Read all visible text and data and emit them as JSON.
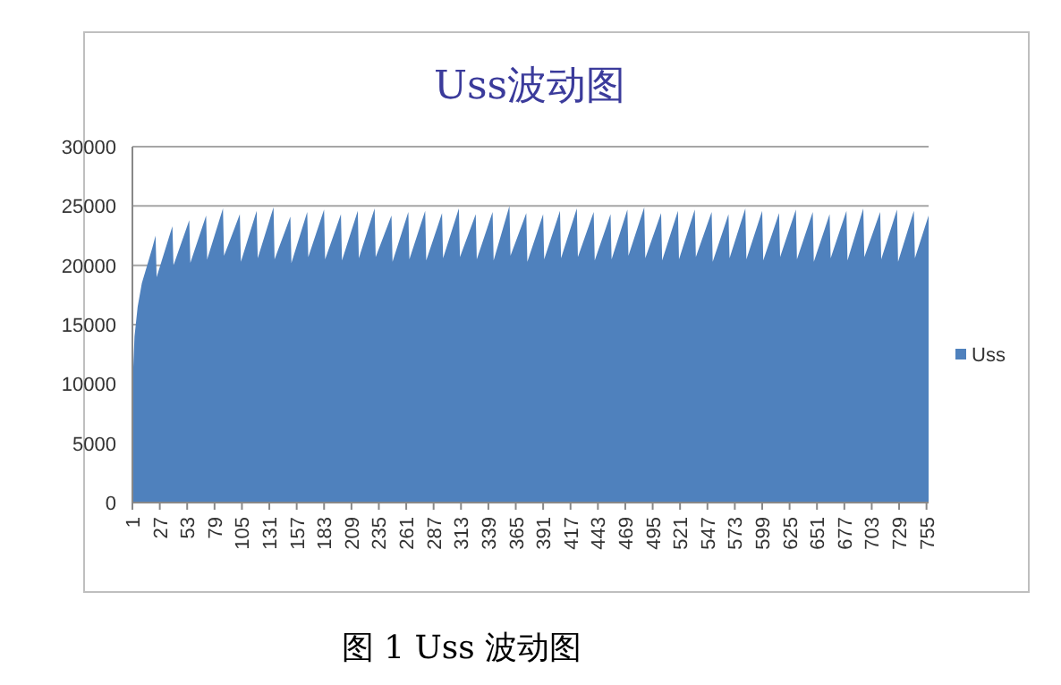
{
  "chart_data": {
    "type": "area",
    "title": "Uss波动图",
    "annotations": [
      "图 1 Uss 波动图"
    ],
    "x": [
      1,
      3,
      6,
      10,
      15,
      20,
      23,
      24,
      39,
      40,
      55,
      56,
      71,
      72,
      87,
      88,
      103,
      104,
      119,
      120,
      135,
      136,
      151,
      152,
      167,
      168,
      183,
      184,
      199,
      200,
      215,
      216,
      231,
      232,
      247,
      248,
      263,
      264,
      279,
      280,
      295,
      296,
      311,
      312,
      327,
      328,
      343,
      344,
      359,
      360,
      375,
      376,
      391,
      392,
      407,
      408,
      423,
      424,
      439,
      440,
      455,
      456,
      471,
      472,
      487,
      488,
      503,
      504,
      519,
      520,
      535,
      536,
      551,
      552,
      567,
      568,
      583,
      584,
      599,
      600,
      615,
      616,
      631,
      632,
      647,
      648,
      663,
      664,
      679,
      680,
      695,
      696,
      711,
      712,
      727,
      728,
      743,
      744,
      757
    ],
    "series": [
      {
        "name": "Uss",
        "color": "#4f81bd",
        "values": [
          9500,
          14000,
          16500,
          18500,
          20000,
          21500,
          22500,
          19000,
          23300,
          20000,
          23800,
          20200,
          24200,
          20500,
          24800,
          20800,
          24300,
          20300,
          24600,
          20600,
          24900,
          20500,
          24100,
          20200,
          24500,
          20700,
          24700,
          20500,
          24300,
          20400,
          24600,
          20600,
          24800,
          20700,
          24200,
          20300,
          24500,
          20500,
          24600,
          20400,
          24400,
          20600,
          24800,
          20700,
          24300,
          20500,
          24500,
          20400,
          25000,
          20800,
          24400,
          20300,
          24300,
          20500,
          24600,
          20600,
          24800,
          20700,
          24500,
          20400,
          24300,
          20500,
          24700,
          20800,
          24900,
          20600,
          24400,
          20400,
          24600,
          20500,
          24700,
          20700,
          24500,
          20300,
          24300,
          20600,
          24800,
          20500,
          24600,
          20400,
          24400,
          20700,
          24700,
          20500,
          24500,
          20300,
          24300,
          20600,
          24600,
          20400,
          24800,
          20700,
          24500,
          20500,
          24700,
          20300,
          24600,
          20600,
          24200
        ]
      }
    ],
    "xlim": [
      1,
      757
    ],
    "ylim": [
      0,
      30000
    ],
    "xticks": [
      1,
      27,
      53,
      79,
      105,
      131,
      157,
      183,
      209,
      235,
      261,
      287,
      313,
      339,
      365,
      391,
      417,
      443,
      469,
      495,
      521,
      547,
      573,
      599,
      625,
      651,
      677,
      703,
      729,
      755
    ],
    "yticks": [
      0,
      5000,
      10000,
      15000,
      20000,
      25000,
      30000
    ],
    "grid": "y",
    "legend": "right"
  }
}
